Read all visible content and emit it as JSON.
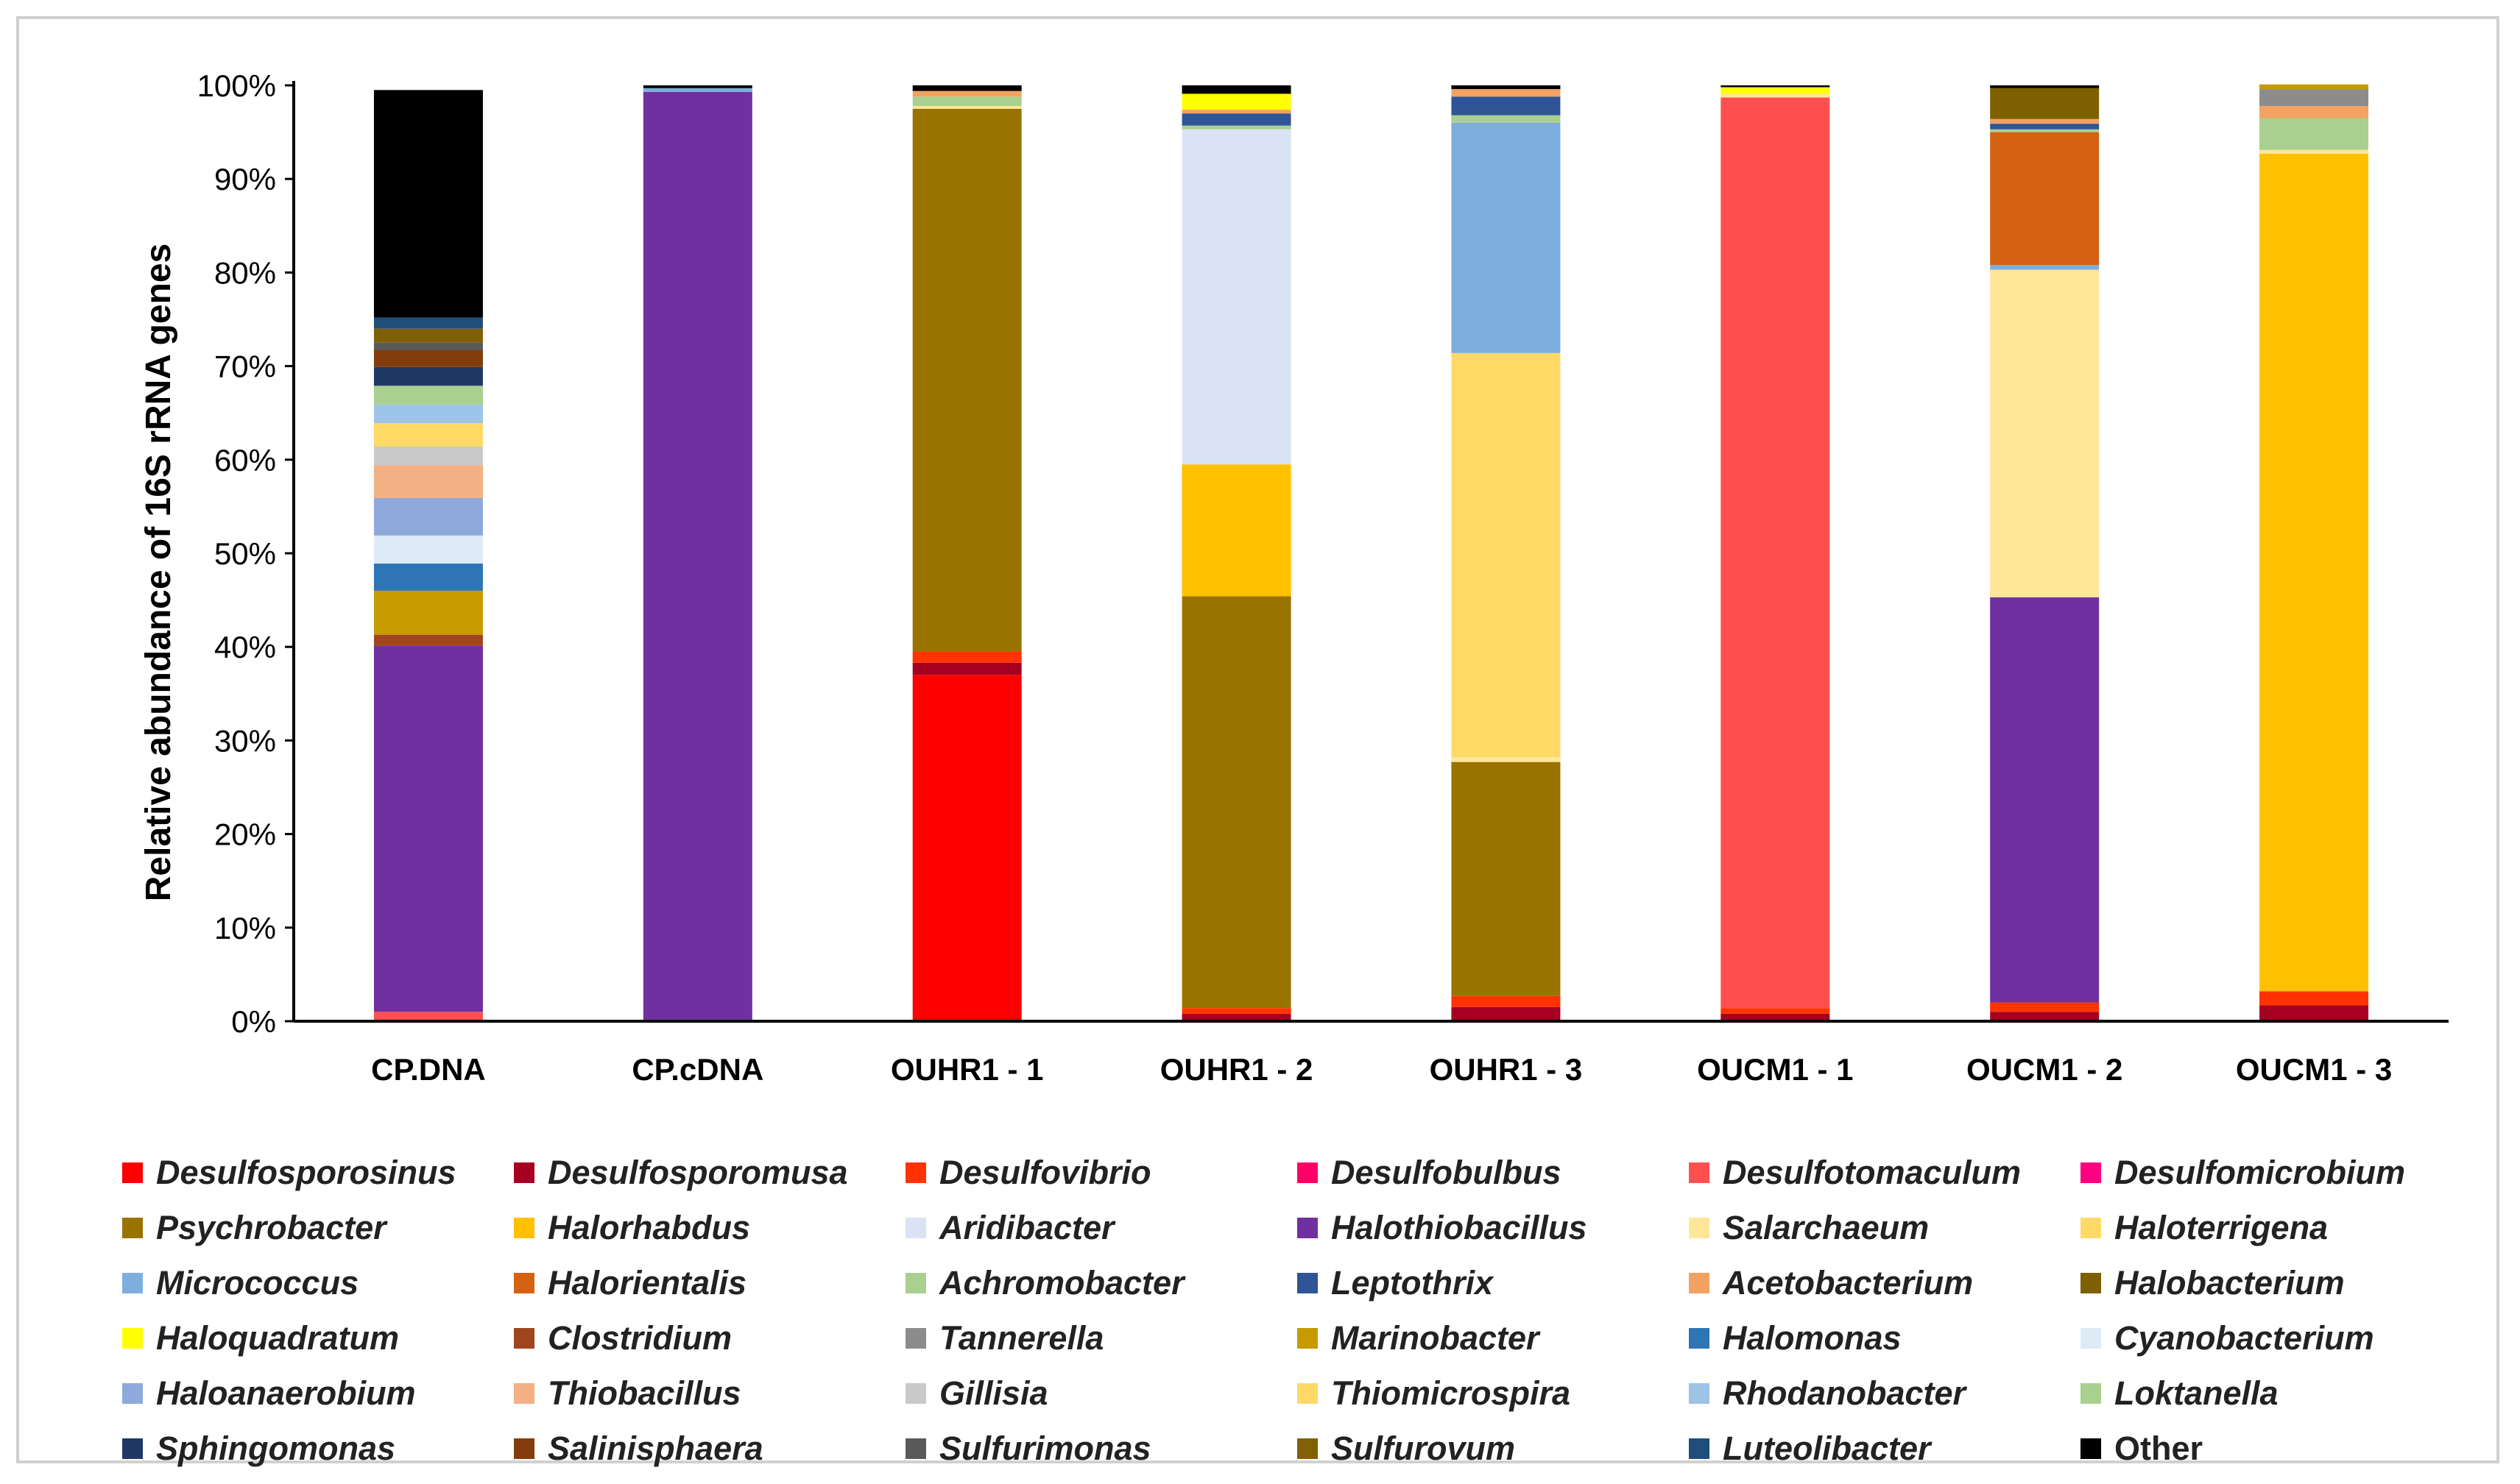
{
  "chart_data": {
    "type": "bar",
    "stacked": true,
    "title": "",
    "xlabel": "",
    "ylabel": "Relative abundance of 16S rRNA genes",
    "ylim": [
      0,
      100
    ],
    "yticks": [
      "0%",
      "10%",
      "20%",
      "30%",
      "40%",
      "50%",
      "60%",
      "70%",
      "80%",
      "90%",
      "100%"
    ],
    "grid": false,
    "legend_position": "bottom",
    "categories": [
      "CP.DNA",
      "CP.cDNA",
      "OUHR1 - 1",
      "OUHR1 - 2",
      "OUHR1 - 3",
      "OUCM1 - 1",
      "OUCM1 - 2",
      "OUCM1 - 3"
    ],
    "series": [
      {
        "name": "Desulfosporosinus",
        "color": "#FF0000",
        "values": [
          0,
          0,
          37.0,
          0,
          0,
          0,
          0,
          0
        ]
      },
      {
        "name": "Desulfosporomusa",
        "color": "#A50021",
        "values": [
          0,
          0,
          1.3,
          0.8,
          1.5,
          0.8,
          1.0,
          1.7
        ]
      },
      {
        "name": "Desulfovibrio",
        "color": "#FF3300",
        "values": [
          0,
          0,
          1.2,
          0.6,
          1.2,
          0.6,
          1.0,
          1.5
        ]
      },
      {
        "name": "Desulfobulbus",
        "color": "#FF0066",
        "values": [
          0,
          0,
          0,
          0,
          0,
          0,
          0,
          0
        ]
      },
      {
        "name": "Desulfotomaculum",
        "color": "#FF5050",
        "values": [
          1.0,
          0,
          0,
          0,
          0,
          97.3,
          0,
          0
        ]
      },
      {
        "name": "Desulfomicrobium",
        "color": "#FF0080",
        "values": [
          0,
          0,
          0,
          0,
          0,
          0,
          0,
          0
        ]
      },
      {
        "name": "Psychrobacter",
        "color": "#997300",
        "values": [
          0,
          0,
          58.0,
          44.0,
          25.0,
          0,
          0,
          0
        ]
      },
      {
        "name": "Halorhabdus",
        "color": "#FFC000",
        "values": [
          0,
          0,
          0,
          14.1,
          0,
          0,
          0,
          89.5
        ]
      },
      {
        "name": "Aridibacter",
        "color": "#DAE3F3",
        "values": [
          0,
          0,
          0,
          35.8,
          0,
          0,
          0,
          0
        ]
      },
      {
        "name": "Halothiobacillus",
        "color": "#7030A0",
        "values": [
          39.1,
          99.3,
          0,
          0,
          0,
          0,
          43.3,
          0
        ]
      },
      {
        "name": "Salarchaeum",
        "color": "#FFE699",
        "values": [
          0,
          0,
          0.3,
          0,
          0.5,
          0.4,
          35.0,
          0.4
        ]
      },
      {
        "name": "Haloterrigena",
        "color": "#FFD966",
        "values": [
          0,
          0,
          0,
          0,
          43.2,
          0,
          0,
          0
        ]
      },
      {
        "name": "Micrococcus",
        "color": "#7DAEDD",
        "values": [
          0,
          0.4,
          0,
          0,
          24.6,
          0,
          0.5,
          0
        ]
      },
      {
        "name": "Halorientalis",
        "color": "#D56213",
        "values": [
          0,
          0,
          0,
          0,
          0,
          0,
          14.2,
          0
        ]
      },
      {
        "name": "Achromobacter",
        "color": "#A9D08E",
        "values": [
          0,
          0,
          1.0,
          0.4,
          0.8,
          0,
          0.3,
          3.4
        ]
      },
      {
        "name": "Leptothrix",
        "color": "#2F5597",
        "values": [
          0,
          0,
          0,
          1.3,
          2.0,
          0,
          0.6,
          0
        ]
      },
      {
        "name": "Acetobacterium",
        "color": "#F4A261",
        "values": [
          0,
          0,
          0.6,
          0.4,
          0.8,
          0,
          0.5,
          1.3
        ]
      },
      {
        "name": "Halobacterium",
        "color": "#7F6000",
        "values": [
          0,
          0,
          0,
          0,
          0,
          0,
          3.3,
          0
        ]
      },
      {
        "name": "Haloquadratum",
        "color": "#FFFF00",
        "values": [
          0,
          0,
          0,
          1.7,
          0,
          0.7,
          0,
          0
        ]
      },
      {
        "name": "Clostridium",
        "color": "#A0451D",
        "values": [
          1.2,
          0,
          0,
          0,
          0,
          0,
          0,
          0
        ]
      },
      {
        "name": "Tannerella",
        "color": "#8C8C8C",
        "values": [
          0,
          0,
          0,
          0,
          0,
          0,
          0,
          1.8
        ]
      },
      {
        "name": "Marinobacter",
        "color": "#C79A00",
        "values": [
          4.7,
          0,
          0,
          0,
          0,
          0,
          0,
          0.5
        ]
      },
      {
        "name": "Halomonas",
        "color": "#2E75B6",
        "values": [
          2.9,
          0,
          0,
          0,
          0,
          0,
          0,
          0
        ]
      },
      {
        "name": "Cyanobacterium",
        "color": "#DEEBF7",
        "values": [
          3.0,
          0,
          0,
          0,
          0,
          0,
          0,
          0
        ]
      },
      {
        "name": "Haloanaerobium",
        "color": "#8EA9DB",
        "values": [
          4.0,
          0,
          0,
          0,
          0,
          0,
          0,
          0
        ]
      },
      {
        "name": "Thiobacillus",
        "color": "#F4B183",
        "values": [
          3.5,
          0,
          0,
          0,
          0,
          0,
          0,
          0
        ]
      },
      {
        "name": "Gillisia",
        "color": "#C9C9C9",
        "values": [
          2.0,
          0,
          0,
          0,
          0,
          0,
          0,
          0
        ]
      },
      {
        "name": "Thiomicrospira",
        "color": "#FFD966",
        "values": [
          2.5,
          0,
          0,
          0,
          0,
          0,
          0,
          0
        ]
      },
      {
        "name": "Rhodanobacter",
        "color": "#9DC3E6",
        "values": [
          2.0,
          0,
          0,
          0,
          0,
          0,
          0,
          0
        ]
      },
      {
        "name": "Loktanella",
        "color": "#A9D08E",
        "values": [
          2.0,
          0,
          0,
          0,
          0,
          0,
          0,
          0
        ]
      },
      {
        "name": "Sphingomonas",
        "color": "#203864",
        "values": [
          2.0,
          0,
          0,
          0,
          0,
          0,
          0,
          0
        ]
      },
      {
        "name": "Salinisphaera",
        "color": "#843C0C",
        "values": [
          1.8,
          0,
          0,
          0,
          0,
          0,
          0,
          0
        ]
      },
      {
        "name": "Sulfurimonas",
        "color": "#595959",
        "values": [
          0.8,
          0,
          0,
          0,
          0,
          0,
          0,
          0
        ]
      },
      {
        "name": "Sulfurovum",
        "color": "#806000",
        "values": [
          1.5,
          0,
          0,
          0,
          0,
          0,
          0,
          0
        ]
      },
      {
        "name": "Luteolibacter",
        "color": "#1F4E79",
        "values": [
          1.2,
          0,
          0,
          0,
          0,
          0,
          0,
          0
        ]
      },
      {
        "name": "Other",
        "color": "#000000",
        "values": [
          24.3,
          0.3,
          0.6,
          0.9,
          0.4,
          0.2,
          0.3,
          0
        ]
      }
    ]
  }
}
